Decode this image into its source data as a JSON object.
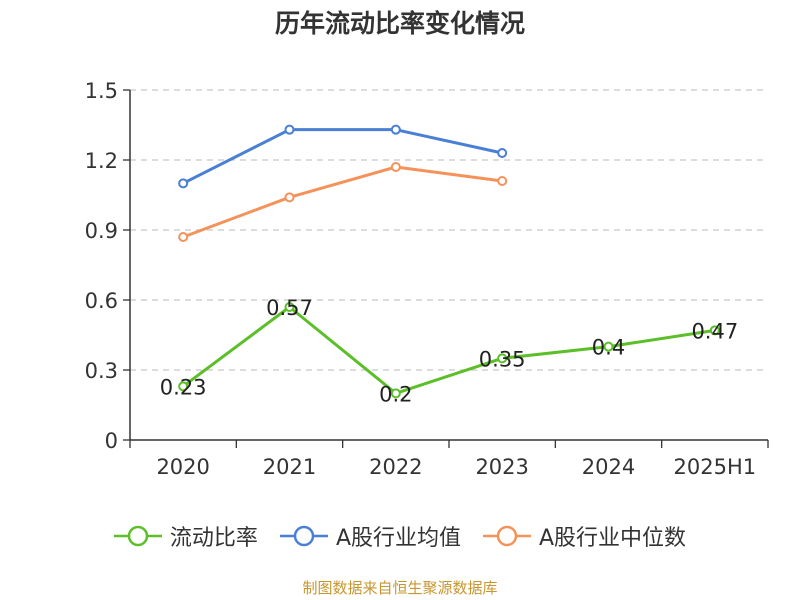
{
  "chart_data": {
    "type": "line",
    "title": "历年流动比率变化情况",
    "categories": [
      "2020",
      "2021",
      "2022",
      "2023",
      "2024",
      "2025H1"
    ],
    "ylim": [
      0,
      1.5
    ],
    "yticks": [
      "0",
      "0.3",
      "0.6",
      "0.9",
      "1.2",
      "1.5"
    ],
    "grid": true,
    "legend_position": "bottom",
    "series": [
      {
        "name": "流动比率",
        "color": "#5cbf2a",
        "values": [
          0.23,
          0.57,
          0.2,
          0.35,
          0.4,
          0.47
        ],
        "labels": [
          "0.23",
          "0.57",
          "0.2",
          "0.35",
          "0.4",
          "0.47"
        ]
      },
      {
        "name": "A股行业均值",
        "color": "#4a7fd6",
        "values": [
          1.1,
          1.33,
          1.33,
          1.23,
          null,
          null
        ]
      },
      {
        "name": "A股行业中位数",
        "color": "#f5925a",
        "values": [
          0.87,
          1.04,
          1.17,
          1.11,
          null,
          null
        ]
      }
    ]
  },
  "source_note": "制图数据来自恒生聚源数据库"
}
